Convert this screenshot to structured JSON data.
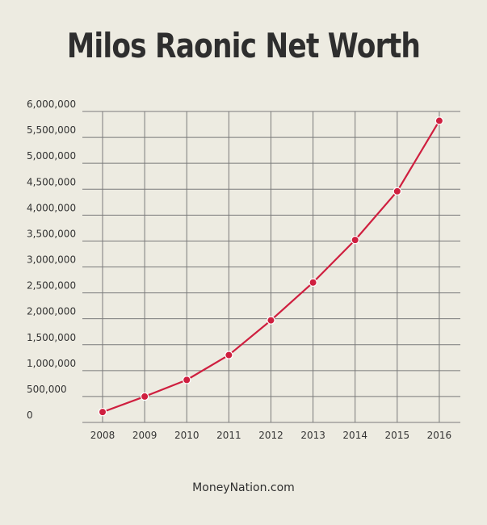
{
  "chart_data": {
    "type": "line",
    "title": "Milos Raonic Net Worth",
    "x": [
      "2008",
      "2009",
      "2010",
      "2011",
      "2012",
      "2013",
      "2014",
      "2015",
      "2016"
    ],
    "series": [
      {
        "values": [
          200000,
          500000,
          820000,
          1300000,
          1970000,
          2700000,
          3520000,
          4460000,
          5820000
        ]
      }
    ],
    "ylim": [
      0,
      6000000
    ],
    "yticks": [
      0,
      500000,
      1000000,
      1500000,
      2000000,
      2500000,
      3000000,
      3500000,
      4000000,
      4500000,
      5000000,
      5500000,
      6000000
    ],
    "ytick_labels": [
      "0",
      "500,000",
      "1,000,000",
      "1,500,000",
      "2,000,000",
      "2,500,000",
      "3,000,000",
      "3,500,000",
      "4,000,000",
      "4,500,000",
      "5,000,000",
      "5,500,000",
      "6,000,000"
    ],
    "xlabel": "",
    "ylabel": "",
    "grid": true,
    "line_color": "#cf1f3f",
    "marker_color": "#cf1f3f",
    "grid_color": "#7a7a7a"
  },
  "source": "MoneyNation.com"
}
